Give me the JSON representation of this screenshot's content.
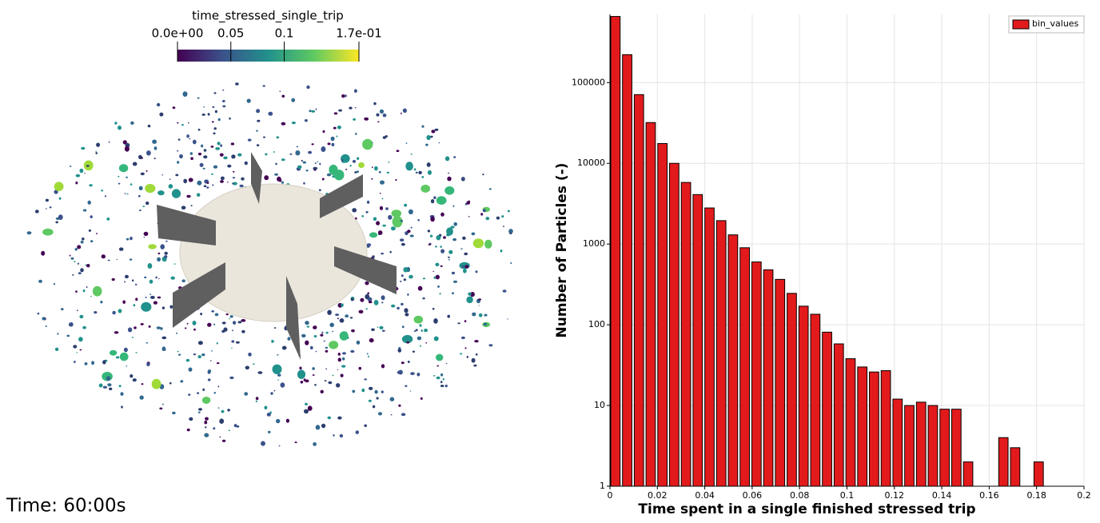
{
  "chart_data": {
    "type": "histogram",
    "x_label": "Time spent in a single finished stressed trip",
    "y_label": "Number of Particles (-)",
    "bins": [
      0,
      0.00496,
      0.00992,
      0.01488,
      0.01984,
      0.0248,
      0.02976,
      0.03472,
      0.03968,
      0.04464,
      0.0496,
      0.05456,
      0.05952,
      0.06448,
      0.06944,
      0.0744,
      0.07936,
      0.08432,
      0.08928,
      0.09424,
      0.0992,
      0.10416,
      0.10912,
      0.11408,
      0.11904,
      0.124,
      0.12896,
      0.13392,
      0.13888,
      0.14384,
      0.1488,
      0.15376,
      0.15872,
      0.16368,
      0.16864,
      0.1736,
      0.17856,
      0.18352
    ],
    "series": [
      {
        "name": "bin_values",
        "color": "#e31a1c",
        "values": [
          660000,
          222000,
          71000,
          32000,
          17600,
          10000,
          5800,
          4100,
          2800,
          1950,
          1300,
          900,
          600,
          480,
          365,
          245,
          170,
          135,
          81,
          58,
          38,
          30,
          26,
          27,
          12,
          10,
          11,
          10,
          9,
          9,
          2,
          0,
          0,
          4,
          3,
          0,
          2
        ]
      }
    ],
    "xlim": [
      0,
      0.2
    ],
    "xticks": [
      0,
      0.02,
      0.04,
      0.06,
      0.08,
      0.1,
      0.12,
      0.14,
      0.16,
      0.18,
      0.2
    ],
    "ylim": [
      1,
      700000
    ],
    "yticks": [
      1,
      10,
      100,
      1000,
      10000,
      100000
    ],
    "ylog": true,
    "grid": true,
    "legend": "top-right"
  },
  "render_view": {
    "colorbar": {
      "title": "time_stressed_single_trip",
      "lim": [
        0,
        0.17
      ],
      "ticks": [
        {
          "value": 0,
          "label": "0.0e+00"
        },
        0.05,
        0.1,
        {
          "value": 0.17,
          "label": "1.7e-01"
        }
      ]
    },
    "time_label": "Time: 60:00s"
  }
}
